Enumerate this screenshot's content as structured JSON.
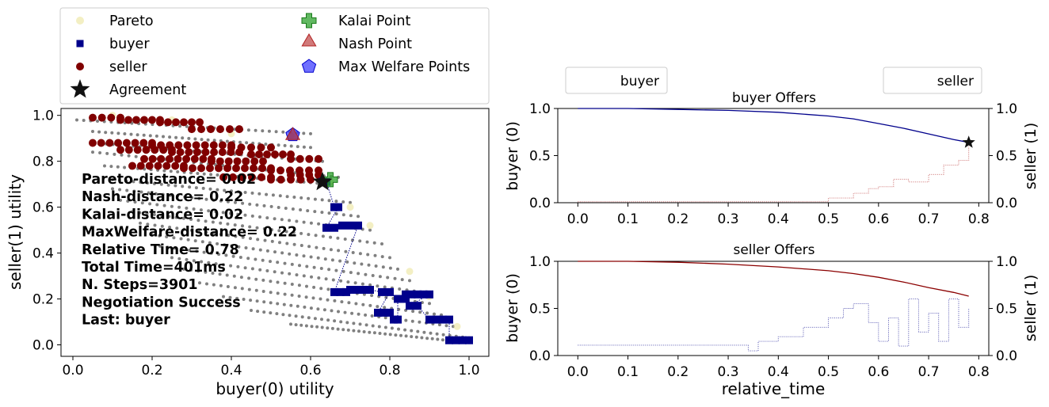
{
  "chart_data": [
    {
      "type": "scatter",
      "xlabel": "buyer(0) utility",
      "ylabel": "seller(1) utility",
      "xlim": [
        -0.03,
        1.05
      ],
      "ylim": [
        -0.05,
        1.03
      ],
      "xticks": [
        "0.0",
        "0.2",
        "0.4",
        "0.6",
        "0.8",
        "1.0"
      ],
      "yticks": [
        "0.0",
        "0.2",
        "0.4",
        "0.6",
        "0.8",
        "1.0"
      ],
      "legend": {
        "placement": "top, above plot, two columns",
        "entries": [
          "Pareto",
          "buyer",
          "seller",
          "Agreement",
          "Kalai Point",
          "Nash Point",
          "Max Welfare Points"
        ]
      },
      "annotations": [
        "Pareto-distance= 0.02",
        "Nash-distance= 0.22",
        "Kalai-distance= 0.02",
        "MaxWelfare-distance= 0.22",
        "Relative Time= 0.78",
        "Total Time=401ms",
        "N. Steps=3901",
        "Negotiation Success",
        "Last: buyer"
      ],
      "agreement": [
        0.63,
        0.71
      ],
      "kalai_point": [
        0.65,
        0.72
      ],
      "nash_point": [
        0.555,
        0.905
      ],
      "max_welfare_point": [
        0.555,
        0.915
      ],
      "pareto": [
        [
          0.1,
          1.0
        ],
        [
          0.25,
          0.98
        ],
        [
          0.4,
          0.92
        ],
        [
          0.55,
          0.91
        ],
        [
          0.65,
          0.71
        ],
        [
          0.7,
          0.6
        ],
        [
          0.75,
          0.52
        ],
        [
          0.85,
          0.32
        ],
        [
          0.9,
          0.21
        ],
        [
          0.97,
          0.08
        ],
        [
          1.0,
          0.02
        ]
      ],
      "outcome_rows": [
        {
          "x": [
            0.01,
            0.6
          ],
          "y0": 0.98,
          "y1": 0.92
        },
        {
          "x": [
            0.05,
            0.6
          ],
          "y0": 0.93,
          "y1": 0.86
        },
        {
          "x": [
            0.05,
            0.63
          ],
          "y0": 0.88,
          "y1": 0.8
        },
        {
          "x": [
            0.05,
            0.67
          ],
          "y0": 0.84,
          "y1": 0.73
        },
        {
          "x": [
            0.08,
            0.65
          ],
          "y0": 0.78,
          "y1": 0.7
        },
        {
          "x": [
            0.1,
            0.7
          ],
          "y0": 0.72,
          "y1": 0.62
        },
        {
          "x": [
            0.1,
            0.72
          ],
          "y0": 0.68,
          "y1": 0.56
        },
        {
          "x": [
            0.12,
            0.75
          ],
          "y0": 0.63,
          "y1": 0.5
        },
        {
          "x": [
            0.15,
            0.78
          ],
          "y0": 0.58,
          "y1": 0.44
        },
        {
          "x": [
            0.17,
            0.8
          ],
          "y0": 0.53,
          "y1": 0.38
        },
        {
          "x": [
            0.2,
            0.82
          ],
          "y0": 0.48,
          "y1": 0.33
        },
        {
          "x": [
            0.22,
            0.85
          ],
          "y0": 0.43,
          "y1": 0.28
        },
        {
          "x": [
            0.25,
            0.88
          ],
          "y0": 0.38,
          "y1": 0.23
        },
        {
          "x": [
            0.28,
            0.9
          ],
          "y0": 0.33,
          "y1": 0.18
        },
        {
          "x": [
            0.32,
            0.93
          ],
          "y0": 0.27,
          "y1": 0.13
        },
        {
          "x": [
            0.38,
            0.96
          ],
          "y0": 0.21,
          "y1": 0.08
        },
        {
          "x": [
            0.45,
            1.0
          ],
          "y0": 0.15,
          "y1": 0.03
        },
        {
          "x": [
            0.55,
            1.0
          ],
          "y0": 0.09,
          "y1": 0.01
        }
      ],
      "seller_offers": [
        {
          "x": [
            0.05,
            0.12
          ],
          "y": 0.99
        },
        {
          "x": [
            0.12,
            0.22
          ],
          "y": 0.98
        },
        {
          "x": [
            0.22,
            0.32
          ],
          "y": 0.97
        },
        {
          "x": [
            0.05,
            0.2
          ],
          "y": 0.88
        },
        {
          "x": [
            0.2,
            0.4
          ],
          "y": 0.87
        },
        {
          "x": [
            0.3,
            0.42
          ],
          "y": 0.94
        },
        {
          "x": [
            0.12,
            0.25
          ],
          "y": 0.85
        },
        {
          "x": [
            0.25,
            0.42
          ],
          "y": 0.84
        },
        {
          "x": [
            0.4,
            0.5
          ],
          "y": 0.86
        },
        {
          "x": [
            0.18,
            0.35
          ],
          "y": 0.81
        },
        {
          "x": [
            0.35,
            0.48
          ],
          "y": 0.8
        },
        {
          "x": [
            0.45,
            0.55
          ],
          "y": 0.83
        },
        {
          "x": [
            0.55,
            0.62
          ],
          "y": 0.81
        },
        {
          "x": [
            0.15,
            0.28
          ],
          "y": 0.78
        },
        {
          "x": [
            0.28,
            0.5
          ],
          "y": 0.77
        },
        {
          "x": [
            0.5,
            0.62
          ],
          "y": 0.76
        },
        {
          "x": [
            0.38,
            0.5
          ],
          "y": 0.73
        },
        {
          "x": [
            0.5,
            0.6
          ],
          "y": 0.72
        },
        {
          "x": [
            0.55,
            0.62
          ],
          "y": 0.74
        }
      ],
      "buyer_offers": [
        {
          "x": [
            0.63,
            0.64
          ],
          "y": 0.71
        },
        {
          "x": [
            0.66,
            0.67
          ],
          "y": 0.6
        },
        {
          "x": [
            0.64,
            0.66
          ],
          "y": 0.51
        },
        {
          "x": [
            0.68,
            0.72
          ],
          "y": 0.52
        },
        {
          "x": [
            0.66,
            0.69
          ],
          "y": 0.23
        },
        {
          "x": [
            0.7,
            0.75
          ],
          "y": 0.24
        },
        {
          "x": [
            0.78,
            0.8
          ],
          "y": 0.23
        },
        {
          "x": [
            0.77,
            0.8
          ],
          "y": 0.14
        },
        {
          "x": [
            0.81,
            0.82
          ],
          "y": 0.11
        },
        {
          "x": [
            0.82,
            0.84
          ],
          "y": 0.2
        },
        {
          "x": [
            0.84,
            0.9
          ],
          "y": 0.22
        },
        {
          "x": [
            0.85,
            0.87
          ],
          "y": 0.17
        },
        {
          "x": [
            0.9,
            0.95
          ],
          "y": 0.11
        },
        {
          "x": [
            0.95,
            1.0
          ],
          "y": 0.02
        }
      ]
    },
    {
      "type": "line",
      "title": "buyer Offers",
      "xlabel": "",
      "ylabel": "buyer (0)",
      "ylabel_right": "seller (1)",
      "xlim": [
        -0.04,
        0.82
      ],
      "ylim": [
        0.0,
        1.0
      ],
      "ylim_right": [
        0.0,
        1.0
      ],
      "xticks": [
        "0.0",
        "0.1",
        "0.2",
        "0.3",
        "0.4",
        "0.5",
        "0.6",
        "0.7",
        "0.8"
      ],
      "yticks": [
        "0.0",
        "0.5",
        "1.0"
      ],
      "yticks_right": [
        "0.0",
        "0.5",
        "1.0"
      ],
      "legend": {
        "placement": "above, left",
        "entries": [
          "buyer"
        ]
      },
      "series": [
        {
          "name": "buyer",
          "color": "#00008b",
          "axis": "left",
          "x": [
            0.0,
            0.1,
            0.2,
            0.3,
            0.4,
            0.5,
            0.55,
            0.6,
            0.65,
            0.7,
            0.75,
            0.78
          ],
          "y": [
            1.0,
            1.0,
            0.99,
            0.98,
            0.96,
            0.92,
            0.89,
            0.84,
            0.79,
            0.73,
            0.67,
            0.64
          ]
        },
        {
          "color": "#b22222",
          "axis": "right",
          "x": [
            0.0,
            0.3,
            0.47,
            0.5,
            0.55,
            0.58,
            0.6,
            0.63,
            0.66,
            0.7,
            0.73,
            0.76,
            0.78
          ],
          "y": [
            0.01,
            0.01,
            0.01,
            0.05,
            0.1,
            0.15,
            0.17,
            0.25,
            0.22,
            0.3,
            0.4,
            0.45,
            0.6
          ]
        }
      ],
      "agreement": [
        0.78,
        0.64
      ]
    },
    {
      "type": "line",
      "title": "seller Offers",
      "xlabel": "relative_time",
      "ylabel": "buyer (0)",
      "ylabel_right": "seller (1)",
      "xlim": [
        -0.04,
        0.82
      ],
      "ylim": [
        0.0,
        1.0
      ],
      "ylim_right": [
        0.0,
        1.0
      ],
      "xticks": [
        "0.0",
        "0.1",
        "0.2",
        "0.3",
        "0.4",
        "0.5",
        "0.6",
        "0.7",
        "0.8"
      ],
      "yticks": [
        "0.0",
        "0.5",
        "1.0"
      ],
      "yticks_right": [
        "0.0",
        "0.5",
        "1.0"
      ],
      "legend": {
        "placement": "above, right",
        "entries": [
          "seller"
        ]
      },
      "series": [
        {
          "name": "seller",
          "color": "#8b0000",
          "axis": "left",
          "x": [
            0.0,
            0.1,
            0.2,
            0.3,
            0.4,
            0.5,
            0.55,
            0.6,
            0.65,
            0.7,
            0.75,
            0.78
          ],
          "y": [
            1.0,
            1.0,
            0.99,
            0.97,
            0.94,
            0.9,
            0.87,
            0.83,
            0.78,
            0.72,
            0.67,
            0.63
          ]
        },
        {
          "color": "#00008b",
          "axis": "right",
          "x": [
            0.0,
            0.2,
            0.34,
            0.36,
            0.4,
            0.45,
            0.5,
            0.53,
            0.55,
            0.58,
            0.6,
            0.62,
            0.64,
            0.66,
            0.68,
            0.7,
            0.72,
            0.74,
            0.76,
            0.78
          ],
          "y": [
            0.11,
            0.11,
            0.05,
            0.15,
            0.2,
            0.3,
            0.4,
            0.5,
            0.55,
            0.35,
            0.15,
            0.4,
            0.1,
            0.6,
            0.25,
            0.45,
            0.15,
            0.6,
            0.3,
            0.5
          ]
        }
      ]
    }
  ]
}
